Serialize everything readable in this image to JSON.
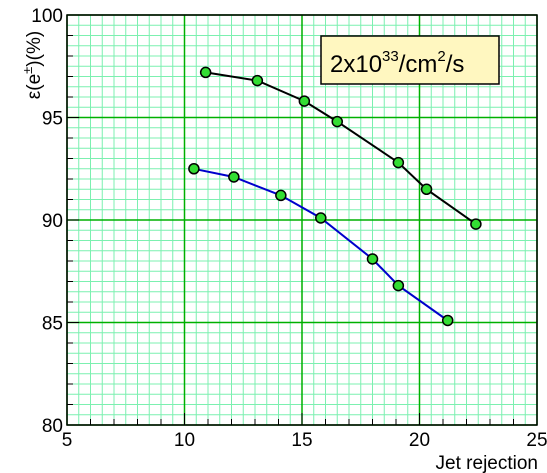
{
  "chart_data": {
    "type": "line",
    "title": "",
    "xlabel": "Jet rejection",
    "ylabel": "ε(e±)(%)",
    "xlim": [
      5,
      25
    ],
    "ylim": [
      80,
      100
    ],
    "xticks": [
      "5",
      "10",
      "15",
      "20",
      "25"
    ],
    "yticks": [
      "80",
      "85",
      "90",
      "95",
      "100"
    ],
    "grid": true,
    "minor_grid": true,
    "annotation": {
      "base": "2x10",
      "exp1": "33",
      "mid": "/cm",
      "exp2": "2",
      "tail": "/s"
    },
    "series": [
      {
        "color": "#000000",
        "x": [
          10.9,
          13.1,
          15.1,
          16.5,
          19.1,
          20.3,
          22.4
        ],
        "y": [
          97.2,
          96.8,
          95.8,
          94.8,
          92.8,
          91.5,
          89.8
        ]
      },
      {
        "color": "#0000cc",
        "x": [
          10.4,
          12.1,
          14.1,
          15.8,
          18.0,
          19.1,
          21.2
        ],
        "y": [
          92.5,
          92.1,
          91.2,
          90.1,
          88.1,
          86.8,
          85.1
        ]
      }
    ]
  },
  "colors": {
    "major_grid": "#00b000",
    "minor_grid": "#7cf0b0",
    "marker_fill": "#33dd33",
    "legend_bg": "#fff7c0"
  }
}
